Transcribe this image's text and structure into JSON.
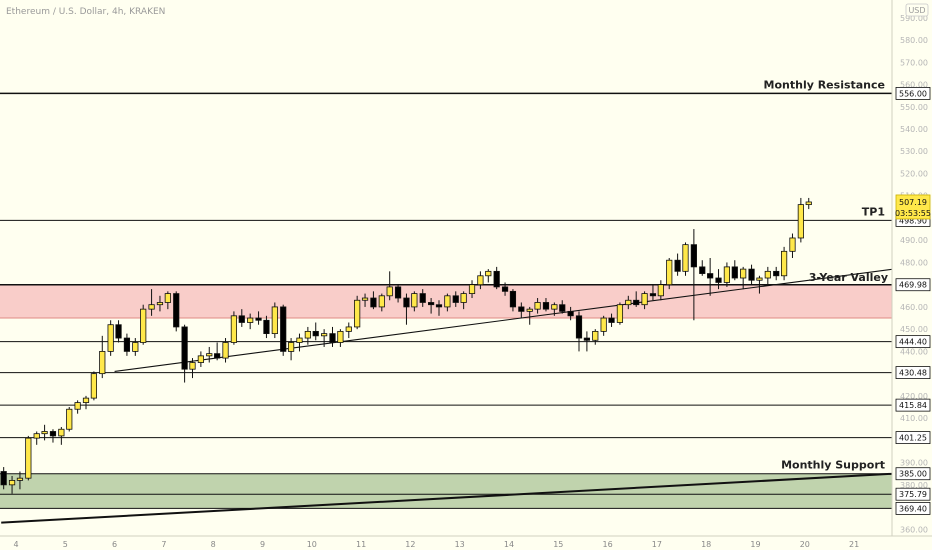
{
  "header": {
    "title": "Ethereum / U.S. Dollar, 4h, KRAKEN",
    "currency": "USD"
  },
  "colors": {
    "background": "#fffff0",
    "candle_up": "#ffe84a",
    "candle_down": "#000000",
    "resistance_zone": "#f8c8c4",
    "support_zone": "#b9cea5",
    "price_tag": "#ffe84a",
    "level_tag": "#ffffff"
  },
  "chart_data": {
    "type": "candlestick",
    "title": "Ethereum / U.S. Dollar, 4h, KRAKEN",
    "ylim": [
      357,
      598
    ],
    "y_ticks": [
      360,
      370,
      380,
      390,
      400,
      410,
      420,
      430,
      440,
      450,
      460,
      470,
      480,
      490,
      500,
      510,
      520,
      530,
      540,
      550,
      560,
      570,
      580,
      590
    ],
    "x_ticks": [
      "4",
      "5",
      "6",
      "7",
      "8",
      "9",
      "10",
      "11",
      "12",
      "13",
      "14",
      "15",
      "16",
      "17",
      "18",
      "19",
      "20",
      "21"
    ],
    "levels": [
      {
        "value": 556.0,
        "label": "556.00",
        "annotation": "Monthly Resistance"
      },
      {
        "value": 498.9,
        "label": "498.90",
        "annotation": "TP1"
      },
      {
        "value": 469.98,
        "label": "469.98",
        "annotation": ""
      },
      {
        "value": 444.4,
        "label": "444.40",
        "annotation": ""
      },
      {
        "value": 430.48,
        "label": "430.48",
        "annotation": ""
      },
      {
        "value": 415.84,
        "label": "415.84",
        "annotation": ""
      },
      {
        "value": 401.25,
        "label": "401.25",
        "annotation": ""
      },
      {
        "value": 385.0,
        "label": "385.00",
        "annotation": "Monthly Support"
      },
      {
        "value": 375.79,
        "label": "375.79",
        "annotation": ""
      },
      {
        "value": 369.4,
        "label": "369.40",
        "annotation": ""
      }
    ],
    "zones": [
      {
        "name": "resistance",
        "from": 455,
        "to": 469.98
      },
      {
        "name": "support",
        "from": 369.4,
        "to": 385
      }
    ],
    "trendlines": [
      {
        "annotation": "3-Year Valley",
        "x1": 6,
        "y1": 431,
        "x2": 21.8,
        "y2": 477
      },
      {
        "annotation": "",
        "x1": 3.7,
        "y1": 363,
        "x2": 21.8,
        "y2": 385
      }
    ],
    "current_price": {
      "value": 507.19,
      "label": "507.19",
      "countdown": "03:53:55"
    },
    "candles": [
      {
        "x": 3.75,
        "o": 386,
        "h": 388,
        "l": 378,
        "c": 380
      },
      {
        "x": 3.92,
        "o": 380,
        "h": 384,
        "l": 376,
        "c": 382
      },
      {
        "x": 4.08,
        "o": 382,
        "h": 386,
        "l": 378,
        "c": 383
      },
      {
        "x": 4.25,
        "o": 383,
        "h": 402,
        "l": 382,
        "c": 401
      },
      {
        "x": 4.42,
        "o": 401,
        "h": 404,
        "l": 398,
        "c": 403
      },
      {
        "x": 4.58,
        "o": 403,
        "h": 407,
        "l": 400,
        "c": 404
      },
      {
        "x": 4.75,
        "o": 404,
        "h": 405,
        "l": 399,
        "c": 402
      },
      {
        "x": 4.92,
        "o": 402,
        "h": 406,
        "l": 398,
        "c": 405
      },
      {
        "x": 5.08,
        "o": 405,
        "h": 415,
        "l": 404,
        "c": 414
      },
      {
        "x": 5.25,
        "o": 414,
        "h": 418,
        "l": 412,
        "c": 417
      },
      {
        "x": 5.42,
        "o": 417,
        "h": 420,
        "l": 414,
        "c": 419
      },
      {
        "x": 5.58,
        "o": 419,
        "h": 431,
        "l": 418,
        "c": 430
      },
      {
        "x": 5.75,
        "o": 430,
        "h": 447,
        "l": 428,
        "c": 440
      },
      {
        "x": 5.92,
        "o": 440,
        "h": 454,
        "l": 438,
        "c": 452
      },
      {
        "x": 6.08,
        "o": 452,
        "h": 454,
        "l": 444,
        "c": 446
      },
      {
        "x": 6.25,
        "o": 446,
        "h": 448,
        "l": 438,
        "c": 440
      },
      {
        "x": 6.42,
        "o": 440,
        "h": 446,
        "l": 438,
        "c": 444
      },
      {
        "x": 6.58,
        "o": 444,
        "h": 461,
        "l": 443,
        "c": 459
      },
      {
        "x": 6.75,
        "o": 459,
        "h": 468,
        "l": 456,
        "c": 461
      },
      {
        "x": 6.92,
        "o": 461,
        "h": 465,
        "l": 458,
        "c": 462
      },
      {
        "x": 7.08,
        "o": 462,
        "h": 467,
        "l": 459,
        "c": 466
      },
      {
        "x": 7.25,
        "o": 466,
        "h": 467,
        "l": 449,
        "c": 451
      },
      {
        "x": 7.42,
        "o": 451,
        "h": 452,
        "l": 426,
        "c": 432
      },
      {
        "x": 7.58,
        "o": 432,
        "h": 437,
        "l": 428,
        "c": 435
      },
      {
        "x": 7.75,
        "o": 435,
        "h": 440,
        "l": 433,
        "c": 438
      },
      {
        "x": 7.92,
        "o": 438,
        "h": 442,
        "l": 435,
        "c": 439
      },
      {
        "x": 8.08,
        "o": 439,
        "h": 444,
        "l": 436,
        "c": 437
      },
      {
        "x": 8.25,
        "o": 437,
        "h": 446,
        "l": 435,
        "c": 444
      },
      {
        "x": 8.42,
        "o": 444,
        "h": 458,
        "l": 443,
        "c": 456
      },
      {
        "x": 8.58,
        "o": 456,
        "h": 459,
        "l": 451,
        "c": 453
      },
      {
        "x": 8.75,
        "o": 453,
        "h": 457,
        "l": 450,
        "c": 455
      },
      {
        "x": 8.92,
        "o": 455,
        "h": 458,
        "l": 452,
        "c": 454
      },
      {
        "x": 9.08,
        "o": 454,
        "h": 456,
        "l": 446,
        "c": 448
      },
      {
        "x": 9.25,
        "o": 448,
        "h": 462,
        "l": 446,
        "c": 460
      },
      {
        "x": 9.42,
        "o": 460,
        "h": 461,
        "l": 438,
        "c": 440
      },
      {
        "x": 9.58,
        "o": 440,
        "h": 446,
        "l": 436,
        "c": 444
      },
      {
        "x": 9.75,
        "o": 444,
        "h": 448,
        "l": 440,
        "c": 446
      },
      {
        "x": 9.92,
        "o": 446,
        "h": 451,
        "l": 443,
        "c": 449
      },
      {
        "x": 10.08,
        "o": 449,
        "h": 453,
        "l": 445,
        "c": 447
      },
      {
        "x": 10.25,
        "o": 447,
        "h": 450,
        "l": 442,
        "c": 448
      },
      {
        "x": 10.42,
        "o": 448,
        "h": 451,
        "l": 442,
        "c": 444
      },
      {
        "x": 10.58,
        "o": 444,
        "h": 450,
        "l": 442,
        "c": 449
      },
      {
        "x": 10.75,
        "o": 449,
        "h": 453,
        "l": 446,
        "c": 451
      },
      {
        "x": 10.92,
        "o": 451,
        "h": 465,
        "l": 450,
        "c": 463
      },
      {
        "x": 11.08,
        "o": 463,
        "h": 466,
        "l": 460,
        "c": 464
      },
      {
        "x": 11.25,
        "o": 464,
        "h": 467,
        "l": 459,
        "c": 460
      },
      {
        "x": 11.42,
        "o": 460,
        "h": 466,
        "l": 458,
        "c": 465
      },
      {
        "x": 11.58,
        "o": 465,
        "h": 476,
        "l": 463,
        "c": 469
      },
      {
        "x": 11.75,
        "o": 469,
        "h": 470,
        "l": 462,
        "c": 464
      },
      {
        "x": 11.92,
        "o": 464,
        "h": 466,
        "l": 452,
        "c": 460
      },
      {
        "x": 12.08,
        "o": 460,
        "h": 467,
        "l": 458,
        "c": 466
      },
      {
        "x": 12.25,
        "o": 466,
        "h": 468,
        "l": 460,
        "c": 462
      },
      {
        "x": 12.42,
        "o": 462,
        "h": 464,
        "l": 457,
        "c": 461
      },
      {
        "x": 12.58,
        "o": 461,
        "h": 463,
        "l": 456,
        "c": 460
      },
      {
        "x": 12.75,
        "o": 460,
        "h": 466,
        "l": 458,
        "c": 465
      },
      {
        "x": 12.92,
        "o": 465,
        "h": 467,
        "l": 460,
        "c": 462
      },
      {
        "x": 13.08,
        "o": 462,
        "h": 467,
        "l": 459,
        "c": 466
      },
      {
        "x": 13.25,
        "o": 466,
        "h": 472,
        "l": 464,
        "c": 470
      },
      {
        "x": 13.42,
        "o": 470,
        "h": 476,
        "l": 468,
        "c": 474
      },
      {
        "x": 13.58,
        "o": 474,
        "h": 477,
        "l": 471,
        "c": 476
      },
      {
        "x": 13.75,
        "o": 476,
        "h": 478,
        "l": 468,
        "c": 469
      },
      {
        "x": 13.92,
        "o": 469,
        "h": 471,
        "l": 465,
        "c": 467
      },
      {
        "x": 14.08,
        "o": 467,
        "h": 468,
        "l": 458,
        "c": 460
      },
      {
        "x": 14.25,
        "o": 460,
        "h": 462,
        "l": 455,
        "c": 458
      },
      {
        "x": 14.42,
        "o": 458,
        "h": 460,
        "l": 452,
        "c": 459
      },
      {
        "x": 14.58,
        "o": 459,
        "h": 464,
        "l": 457,
        "c": 462
      },
      {
        "x": 14.75,
        "o": 462,
        "h": 464,
        "l": 458,
        "c": 459
      },
      {
        "x": 14.92,
        "o": 459,
        "h": 462,
        "l": 456,
        "c": 461
      },
      {
        "x": 15.08,
        "o": 461,
        "h": 463,
        "l": 457,
        "c": 458
      },
      {
        "x": 15.25,
        "o": 458,
        "h": 460,
        "l": 454,
        "c": 456
      },
      {
        "x": 15.42,
        "o": 456,
        "h": 458,
        "l": 440,
        "c": 446
      },
      {
        "x": 15.58,
        "o": 446,
        "h": 449,
        "l": 440,
        "c": 445
      },
      {
        "x": 15.75,
        "o": 445,
        "h": 450,
        "l": 443,
        "c": 449
      },
      {
        "x": 15.92,
        "o": 449,
        "h": 456,
        "l": 447,
        "c": 455
      },
      {
        "x": 16.08,
        "o": 455,
        "h": 457,
        "l": 451,
        "c": 453
      },
      {
        "x": 16.25,
        "o": 453,
        "h": 462,
        "l": 452,
        "c": 461
      },
      {
        "x": 16.42,
        "o": 461,
        "h": 465,
        "l": 459,
        "c": 463
      },
      {
        "x": 16.58,
        "o": 463,
        "h": 467,
        "l": 460,
        "c": 461
      },
      {
        "x": 16.75,
        "o": 461,
        "h": 467,
        "l": 459,
        "c": 466
      },
      {
        "x": 16.92,
        "o": 466,
        "h": 470,
        "l": 463,
        "c": 465
      },
      {
        "x": 17.08,
        "o": 465,
        "h": 472,
        "l": 463,
        "c": 470
      },
      {
        "x": 17.25,
        "o": 470,
        "h": 482,
        "l": 468,
        "c": 481
      },
      {
        "x": 17.42,
        "o": 481,
        "h": 484,
        "l": 474,
        "c": 476
      },
      {
        "x": 17.58,
        "o": 476,
        "h": 489,
        "l": 474,
        "c": 488
      },
      {
        "x": 17.75,
        "o": 488,
        "h": 495,
        "l": 454,
        "c": 478
      },
      {
        "x": 17.92,
        "o": 478,
        "h": 481,
        "l": 474,
        "c": 475
      },
      {
        "x": 18.08,
        "o": 475,
        "h": 482,
        "l": 465,
        "c": 473
      },
      {
        "x": 18.25,
        "o": 473,
        "h": 477,
        "l": 468,
        "c": 471
      },
      {
        "x": 18.42,
        "o": 471,
        "h": 480,
        "l": 469,
        "c": 478
      },
      {
        "x": 18.58,
        "o": 478,
        "h": 481,
        "l": 472,
        "c": 473
      },
      {
        "x": 18.75,
        "o": 473,
        "h": 478,
        "l": 468,
        "c": 477
      },
      {
        "x": 18.92,
        "o": 477,
        "h": 479,
        "l": 470,
        "c": 472
      },
      {
        "x": 19.08,
        "o": 472,
        "h": 474,
        "l": 466,
        "c": 473
      },
      {
        "x": 19.25,
        "o": 473,
        "h": 478,
        "l": 470,
        "c": 476
      },
      {
        "x": 19.42,
        "o": 476,
        "h": 478,
        "l": 472,
        "c": 474
      },
      {
        "x": 19.58,
        "o": 474,
        "h": 487,
        "l": 472,
        "c": 485
      },
      {
        "x": 19.75,
        "o": 485,
        "h": 493,
        "l": 482,
        "c": 491
      },
      {
        "x": 19.92,
        "o": 491,
        "h": 509,
        "l": 489,
        "c": 506
      },
      {
        "x": 20.08,
        "o": 506,
        "h": 509,
        "l": 504,
        "c": 507.19
      }
    ]
  }
}
